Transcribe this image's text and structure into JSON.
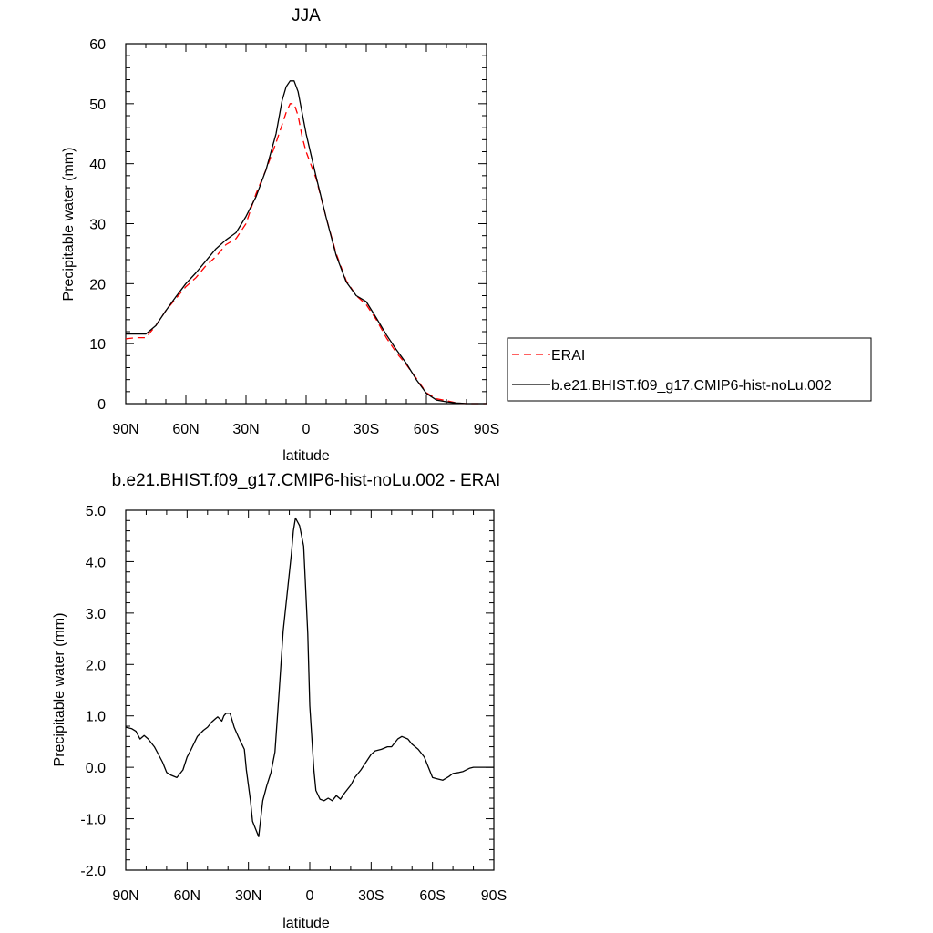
{
  "chart_data": [
    {
      "type": "line",
      "title": "JJA",
      "xlabel": "latitude",
      "ylabel": "Precipitable water (mm)",
      "xlim": [
        90,
        -90
      ],
      "ylim": [
        0,
        60
      ],
      "xticks": [
        {
          "value": 90,
          "label": "90N"
        },
        {
          "value": 60,
          "label": "60N"
        },
        {
          "value": 30,
          "label": "30N"
        },
        {
          "value": 0,
          "label": "0"
        },
        {
          "value": -30,
          "label": "30S"
        },
        {
          "value": -60,
          "label": "60S"
        },
        {
          "value": -90,
          "label": "90S"
        }
      ],
      "yticks": [
        {
          "value": 0,
          "label": "0"
        },
        {
          "value": 10,
          "label": "10"
        },
        {
          "value": 20,
          "label": "20"
        },
        {
          "value": 30,
          "label": "30"
        },
        {
          "value": 40,
          "label": "40"
        },
        {
          "value": 50,
          "label": "50"
        },
        {
          "value": 60,
          "label": "60"
        }
      ],
      "legend": "right",
      "series": [
        {
          "name": "ERAI",
          "color": "#ff0000",
          "dash": "dashed",
          "x": [
            90,
            85,
            80,
            75,
            70,
            65,
            60,
            55,
            50,
            45,
            40,
            35,
            30,
            25,
            20,
            15,
            12,
            10,
            8,
            6,
            4,
            2,
            0,
            -5,
            -10,
            -15,
            -20,
            -25,
            -30,
            -35,
            -40,
            -45,
            -50,
            -55,
            -60,
            -65,
            -70,
            -75,
            -80,
            -85,
            -90
          ],
          "y": [
            10.8,
            11.0,
            11.0,
            13.0,
            15.5,
            17.5,
            19.5,
            21.0,
            23.0,
            24.5,
            26.5,
            27.5,
            30.0,
            35.0,
            39.0,
            43.5,
            46.5,
            48.5,
            50.0,
            50.0,
            48.0,
            44.5,
            42.0,
            37.5,
            31.0,
            25.0,
            20.5,
            18.0,
            16.5,
            14.0,
            11.0,
            8.5,
            6.5,
            4.2,
            1.8,
            0.8,
            0.5,
            0.1,
            0.0,
            0.0,
            0.0
          ]
        },
        {
          "name": "b.e21.BHIST.f09_g17.CMIP6-hist-noLu.002",
          "color": "#000000",
          "dash": "solid",
          "x": [
            90,
            85,
            80,
            75,
            70,
            65,
            60,
            55,
            50,
            45,
            40,
            35,
            30,
            25,
            20,
            15,
            12,
            10,
            8,
            6,
            4,
            2,
            0,
            -5,
            -10,
            -15,
            -20,
            -25,
            -30,
            -35,
            -40,
            -45,
            -50,
            -55,
            -60,
            -65,
            -70,
            -75,
            -80,
            -85,
            -90
          ],
          "y": [
            11.6,
            11.6,
            11.6,
            13.0,
            15.5,
            17.8,
            20.0,
            21.8,
            23.8,
            25.8,
            27.3,
            28.5,
            31.2,
            34.5,
            39.0,
            45.0,
            50.5,
            52.8,
            53.8,
            53.8,
            52.0,
            48.5,
            45.0,
            37.8,
            31.0,
            24.7,
            20.3,
            18.0,
            17.0,
            14.3,
            11.5,
            9.0,
            6.7,
            4.0,
            1.7,
            0.6,
            0.3,
            0.1,
            0.0,
            0.0,
            0.0
          ]
        }
      ]
    },
    {
      "type": "line",
      "title": "b.e21.BHIST.f09_g17.CMIP6-hist-noLu.002 - ERAI",
      "xlabel": "latitude",
      "ylabel": "Precipitable water (mm)",
      "xlim": [
        90,
        -90
      ],
      "ylim": [
        -2.0,
        5.0
      ],
      "xticks": [
        {
          "value": 90,
          "label": "90N"
        },
        {
          "value": 60,
          "label": "60N"
        },
        {
          "value": 30,
          "label": "30N"
        },
        {
          "value": 0,
          "label": "0"
        },
        {
          "value": -30,
          "label": "30S"
        },
        {
          "value": -60,
          "label": "60S"
        },
        {
          "value": -90,
          "label": "90S"
        }
      ],
      "yticks": [
        {
          "value": -2,
          "label": "-2.0"
        },
        {
          "value": -1,
          "label": "-1.0"
        },
        {
          "value": 0,
          "label": "0.0"
        },
        {
          "value": 1,
          "label": "1.0"
        },
        {
          "value": 2,
          "label": "2.0"
        },
        {
          "value": 3,
          "label": "3.0"
        },
        {
          "value": 4,
          "label": "4.0"
        },
        {
          "value": 5,
          "label": "5.0"
        }
      ],
      "series": [
        {
          "color": "#000000",
          "dash": "solid",
          "x": [
            90,
            87,
            85,
            83,
            81,
            79,
            76,
            74,
            72,
            70,
            68,
            65,
            62,
            60,
            58,
            55,
            52,
            50,
            48,
            46,
            45,
            43,
            42,
            41,
            39,
            37,
            35,
            32,
            31,
            29,
            28,
            27,
            25,
            23,
            21,
            19,
            17,
            15,
            13,
            11,
            9,
            8,
            7,
            5,
            3,
            1,
            0,
            -2,
            -3,
            -5,
            -7,
            -9,
            -11,
            -13,
            -15,
            -17,
            -20,
            -22,
            -25,
            -30,
            -32,
            -35,
            -38,
            -40,
            -43,
            -45,
            -48,
            -50,
            -53,
            -56,
            -60,
            -62,
            -65,
            -68,
            -70,
            -73,
            -75,
            -78,
            -80,
            -85,
            -88,
            -90
          ],
          "y": [
            0.78,
            0.75,
            0.7,
            0.55,
            0.62,
            0.55,
            0.4,
            0.25,
            0.1,
            -0.1,
            -0.15,
            -0.2,
            -0.05,
            0.2,
            0.35,
            0.6,
            0.72,
            0.78,
            0.88,
            0.95,
            0.98,
            0.9,
            1.0,
            1.05,
            1.05,
            0.78,
            0.6,
            0.35,
            -0.05,
            -0.65,
            -1.05,
            -1.15,
            -1.35,
            -0.65,
            -0.35,
            -0.1,
            0.3,
            1.45,
            2.65,
            3.4,
            4.15,
            4.6,
            4.85,
            4.7,
            4.3,
            2.6,
            1.2,
            -0.05,
            -0.45,
            -0.62,
            -0.65,
            -0.6,
            -0.65,
            -0.55,
            -0.62,
            -0.5,
            -0.35,
            -0.2,
            -0.05,
            0.25,
            0.32,
            0.35,
            0.4,
            0.4,
            0.55,
            0.6,
            0.55,
            0.45,
            0.35,
            0.2,
            -0.2,
            -0.22,
            -0.25,
            -0.18,
            -0.12,
            -0.1,
            -0.08,
            -0.02,
            0.0,
            0.0,
            0.0,
            0.0
          ]
        }
      ]
    }
  ]
}
